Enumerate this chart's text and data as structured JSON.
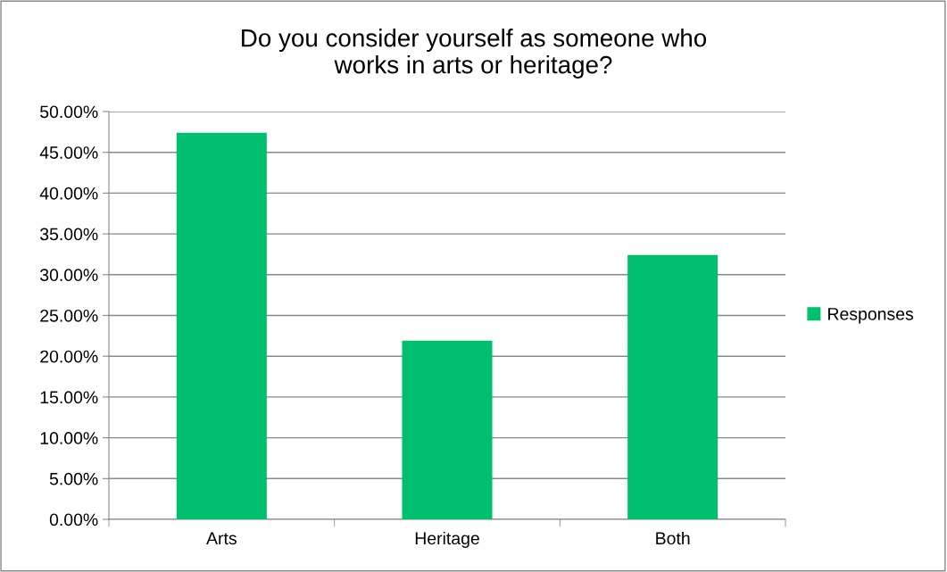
{
  "chart_data": {
    "type": "bar",
    "title": "Do you consider yourself as someone who\nworks in arts or heritage?",
    "categories": [
      "Arts",
      "Heritage",
      "Both"
    ],
    "series": [
      {
        "name": "Responses",
        "color": "#00bf6f",
        "values": [
          47.4,
          21.9,
          32.4
        ]
      }
    ],
    "ylim": [
      0,
      50
    ],
    "yticks": [
      {
        "value": 0,
        "label": "0.00%"
      },
      {
        "value": 5,
        "label": "5.00%"
      },
      {
        "value": 10,
        "label": "10.00%"
      },
      {
        "value": 15,
        "label": "15.00%"
      },
      {
        "value": 20,
        "label": "20.00%"
      },
      {
        "value": 25,
        "label": "25.00%"
      },
      {
        "value": 30,
        "label": "30.00%"
      },
      {
        "value": 35,
        "label": "35.00%"
      },
      {
        "value": 40,
        "label": "40.00%"
      },
      {
        "value": 45,
        "label": "45.00%"
      },
      {
        "value": 50,
        "label": "50.00%"
      }
    ],
    "grid": "y",
    "legend": "right"
  }
}
